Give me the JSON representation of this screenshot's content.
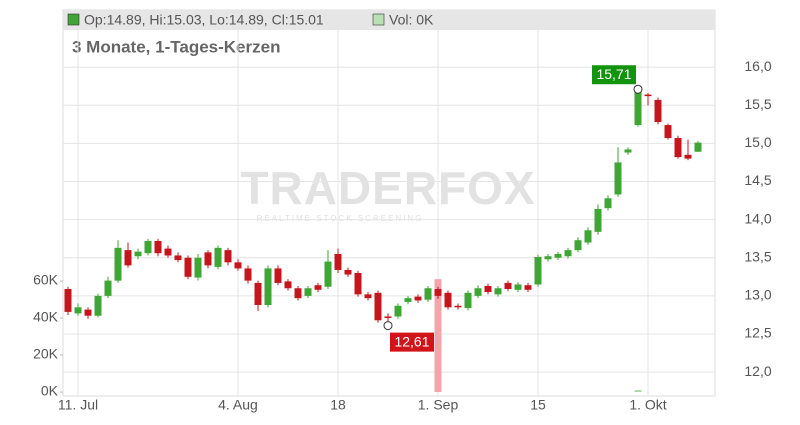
{
  "chart_data": {
    "type": "candlestick",
    "ohlc_header": "Op:14.89, Hi:15.03, Lo:14.89, Cl:15.01",
    "volume_header": "Vol: 0K",
    "subtitle": "3 Monate, 1-Tages-Kerzen",
    "watermark": "TRADERFOX",
    "watermark_sub": "REALTIME STOCK SCREENING",
    "categories": [
      null,
      "11. Jul",
      null,
      null,
      null,
      null,
      null,
      null,
      null,
      null,
      null,
      null,
      null,
      null,
      null,
      null,
      null,
      "4. Aug",
      null,
      null,
      null,
      null,
      null,
      null,
      null,
      null,
      null,
      "18",
      null,
      null,
      null,
      null,
      null,
      null,
      null,
      null,
      null,
      "1. Sep",
      null,
      null,
      null,
      null,
      null,
      null,
      null,
      null,
      null,
      "15",
      null,
      null,
      null,
      null,
      null,
      null,
      null,
      null,
      null,
      null,
      "1. Okt",
      null,
      null,
      null,
      null,
      null
    ],
    "open": [
      13.09,
      12.77,
      12.82,
      12.74,
      13.0,
      13.2,
      13.6,
      13.52,
      13.56,
      13.72,
      13.62,
      13.53,
      13.5,
      13.24,
      13.57,
      13.38,
      13.6,
      13.44,
      13.36,
      13.17,
      12.88,
      13.36,
      13.19,
      13.1,
      13.0,
      13.14,
      13.12,
      13.55,
      13.34,
      13.3,
      13.02,
      13.04,
      12.73,
      12.73,
      12.92,
      12.99,
      12.95,
      13.09,
      13.04,
      12.87,
      12.84,
      13.0,
      13.13,
      13.02,
      13.17,
      13.08,
      13.14,
      13.15,
      13.48,
      13.5,
      13.52,
      13.6,
      13.7,
      13.84,
      14.15,
      14.33,
      14.88,
      15.24,
      15.64,
      15.57,
      15.24,
      15.07,
      14.85,
      14.89
    ],
    "high": [
      13.12,
      12.9,
      12.85,
      13.03,
      13.25,
      13.73,
      13.7,
      13.62,
      13.75,
      13.75,
      13.66,
      13.57,
      13.53,
      13.55,
      13.6,
      13.66,
      13.63,
      13.48,
      13.4,
      13.2,
      13.4,
      13.4,
      13.22,
      13.13,
      13.13,
      13.17,
      13.6,
      13.62,
      13.37,
      13.33,
      13.05,
      13.07,
      12.77,
      12.9,
      13.0,
      13.02,
      13.13,
      13.12,
      13.07,
      12.9,
      13.07,
      13.14,
      13.16,
      13.13,
      13.2,
      13.18,
      13.17,
      13.54,
      13.55,
      13.58,
      13.63,
      13.77,
      13.9,
      14.2,
      14.32,
      14.95,
      14.95,
      15.71,
      15.66,
      15.6,
      15.26,
      15.1,
      15.05,
      15.03
    ],
    "low": [
      12.75,
      12.74,
      12.7,
      12.72,
      12.97,
      13.17,
      13.37,
      13.48,
      13.53,
      13.52,
      13.5,
      13.44,
      13.22,
      13.2,
      13.36,
      13.35,
      13.4,
      13.33,
      13.16,
      12.8,
      12.85,
      13.14,
      13.07,
      12.94,
      12.97,
      13.05,
      13.09,
      13.3,
      13.25,
      12.99,
      12.94,
      12.65,
      12.61,
      12.7,
      12.89,
      12.91,
      12.92,
      12.96,
      12.82,
      12.82,
      12.81,
      12.97,
      13.02,
      12.99,
      13.06,
      13.05,
      13.05,
      13.12,
      13.45,
      13.47,
      13.49,
      13.57,
      13.67,
      13.8,
      14.12,
      14.3,
      14.85,
      15.22,
      15.5,
      15.25,
      15.05,
      14.8,
      14.78,
      14.89
    ],
    "close": [
      12.79,
      12.85,
      12.74,
      13.0,
      13.2,
      13.63,
      13.4,
      13.58,
      13.72,
      13.56,
      13.53,
      13.47,
      13.25,
      13.5,
      13.4,
      13.63,
      13.44,
      13.36,
      13.2,
      12.88,
      13.36,
      13.17,
      13.1,
      12.97,
      13.1,
      13.08,
      13.45,
      13.34,
      13.28,
      13.02,
      12.97,
      12.68,
      12.71,
      12.87,
      12.97,
      12.94,
      13.1,
      13.0,
      12.85,
      12.85,
      13.04,
      13.1,
      13.05,
      13.1,
      13.09,
      13.15,
      13.08,
      13.51,
      13.52,
      13.55,
      13.6,
      13.73,
      13.86,
      14.14,
      14.28,
      14.75,
      14.92,
      15.7,
      15.62,
      15.28,
      15.07,
      14.82,
      14.8,
      15.01
    ],
    "volume": [
      0,
      0,
      0,
      0,
      0,
      0,
      0,
      0,
      0,
      0,
      0,
      0,
      0,
      0,
      0,
      0,
      0,
      0,
      0,
      0,
      0,
      0,
      0,
      0,
      0,
      0,
      0,
      0,
      0,
      0,
      0,
      0,
      0,
      0,
      0,
      0,
      0,
      61000,
      0,
      0,
      0,
      0,
      0,
      0,
      0,
      0,
      0,
      0,
      0,
      0,
      0,
      0,
      0,
      0,
      0,
      0,
      0,
      1000,
      0,
      0,
      0,
      0,
      0,
      0
    ],
    "up_color": "#3fa535",
    "down_color": "#c4161c",
    "volume_down_color": "#f2a5ad",
    "volume_up_color": "#a9d8a4",
    "ylim": [
      11.7,
      16.5
    ],
    "yticks": [
      {
        "value": 12,
        "label": "12,0"
      },
      {
        "value": 12.5,
        "label": "12,5"
      },
      {
        "value": 13,
        "label": "13,0"
      },
      {
        "value": 13.5,
        "label": "13,5"
      },
      {
        "value": 14,
        "label": "14,0"
      },
      {
        "value": 14.5,
        "label": "14,5"
      },
      {
        "value": 15,
        "label": "15,0"
      },
      {
        "value": 15.5,
        "label": "15,5"
      },
      {
        "value": 16,
        "label": "16,0"
      }
    ],
    "y2lim": [
      0,
      60000
    ],
    "y2ticks": [
      {
        "value": 0,
        "label": "0K"
      },
      {
        "value": 20000,
        "label": "20K"
      },
      {
        "value": 40000,
        "label": "40K"
      },
      {
        "value": 60000,
        "label": "60K"
      }
    ],
    "grid": true,
    "annotations": [
      {
        "text": "15,71",
        "value": 15.71,
        "index": 57,
        "color": "#12940f"
      },
      {
        "text": "12,61",
        "value": 12.61,
        "index": 32,
        "color": "#d0141a"
      }
    ]
  }
}
